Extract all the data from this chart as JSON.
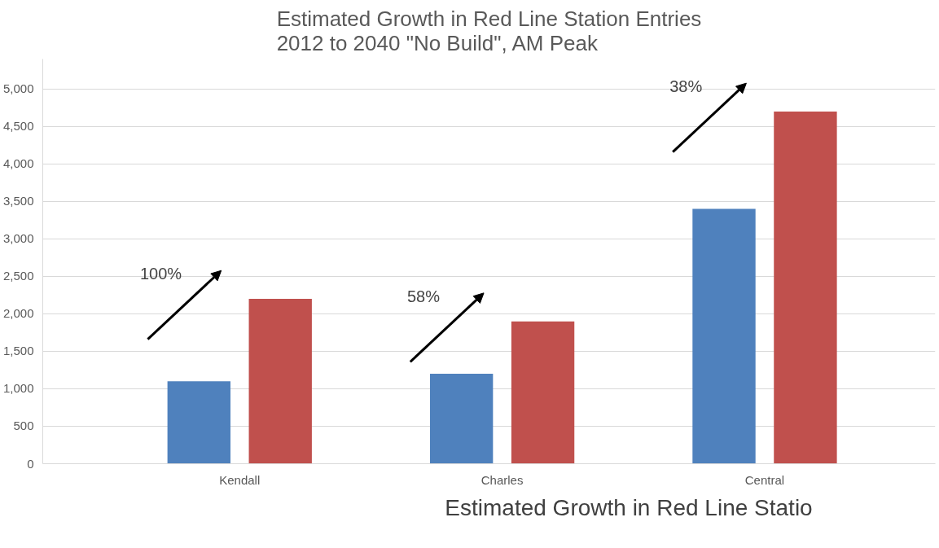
{
  "chart_data": [
    {
      "type": "bar",
      "title": "Estimated Growth in Red Line Station Entries\n2012 to 2040 \"No Build\", AM Peak",
      "categories": [
        "Kendall",
        "Charles",
        "Central"
      ],
      "series": [
        {
          "color": "#4f81bd",
          "values": [
            1100,
            1200,
            3400
          ]
        },
        {
          "color": "#c0504d",
          "values": [
            2200,
            1900,
            4700
          ]
        }
      ],
      "ylim": [
        0,
        5400
      ],
      "yticks": [
        0,
        {
          "value": 500,
          "label": "500"
        },
        {
          "value": 1000,
          "label": "1,000"
        },
        {
          "value": 1500,
          "label": "1,500"
        },
        {
          "value": 2000,
          "label": "2,000"
        },
        {
          "value": 2500,
          "label": "2,500"
        },
        {
          "value": 3000,
          "label": "3,000"
        },
        {
          "value": 3500,
          "label": "3,500"
        },
        {
          "value": 4000,
          "label": "4,000"
        },
        {
          "value": 4500,
          "label": "4,500"
        },
        {
          "value": 5000,
          "label": "5,000"
        }
      ],
      "grid": "y",
      "annotations": [
        "100%",
        "58%",
        "38%"
      ]
    },
    {
      "type": "other",
      "title": "Estimated Growth in Red Line Statio"
    }
  ]
}
